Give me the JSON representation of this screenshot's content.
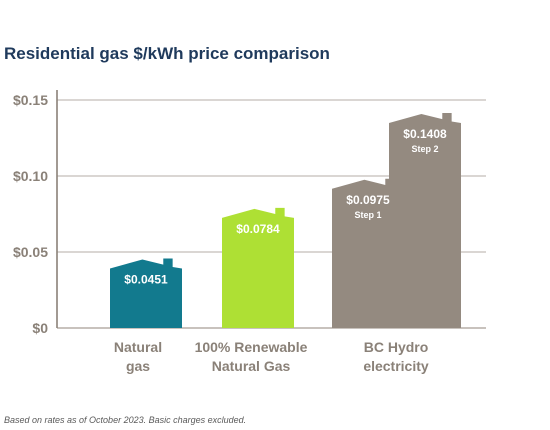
{
  "chart_data": {
    "type": "bar",
    "title": "Residential gas $/kWh price comparison",
    "categories": [
      [
        "Natural",
        "gas"
      ],
      [
        "100% Renewable",
        "Natural Gas"
      ],
      [
        "BC Hydro",
        "electricity"
      ]
    ],
    "bars": [
      {
        "group": 0,
        "value": 0.0451,
        "label": "$0.0451",
        "sublabel": "",
        "color": "#127a8e"
      },
      {
        "group": 1,
        "value": 0.0784,
        "label": "$0.0784",
        "sublabel": "",
        "color": "#aee034"
      },
      {
        "group": 2,
        "value": 0.0975,
        "label": "$0.0975",
        "sublabel": "Step 1",
        "color": "#948a80"
      },
      {
        "group": 2,
        "value": 0.1408,
        "label": "$0.1408",
        "sublabel": "Step 2",
        "color": "#948a80"
      }
    ],
    "yticks": [
      {
        "value": 0,
        "label": "$0"
      },
      {
        "value": 0.05,
        "label": "$0.05"
      },
      {
        "value": 0.1,
        "label": "$0.10"
      },
      {
        "value": 0.15,
        "label": "$0.15"
      }
    ],
    "ylim": [
      0,
      0.15
    ],
    "grid": true,
    "footnote": "Based on rates as of October 2023. Basic charges excluded."
  }
}
